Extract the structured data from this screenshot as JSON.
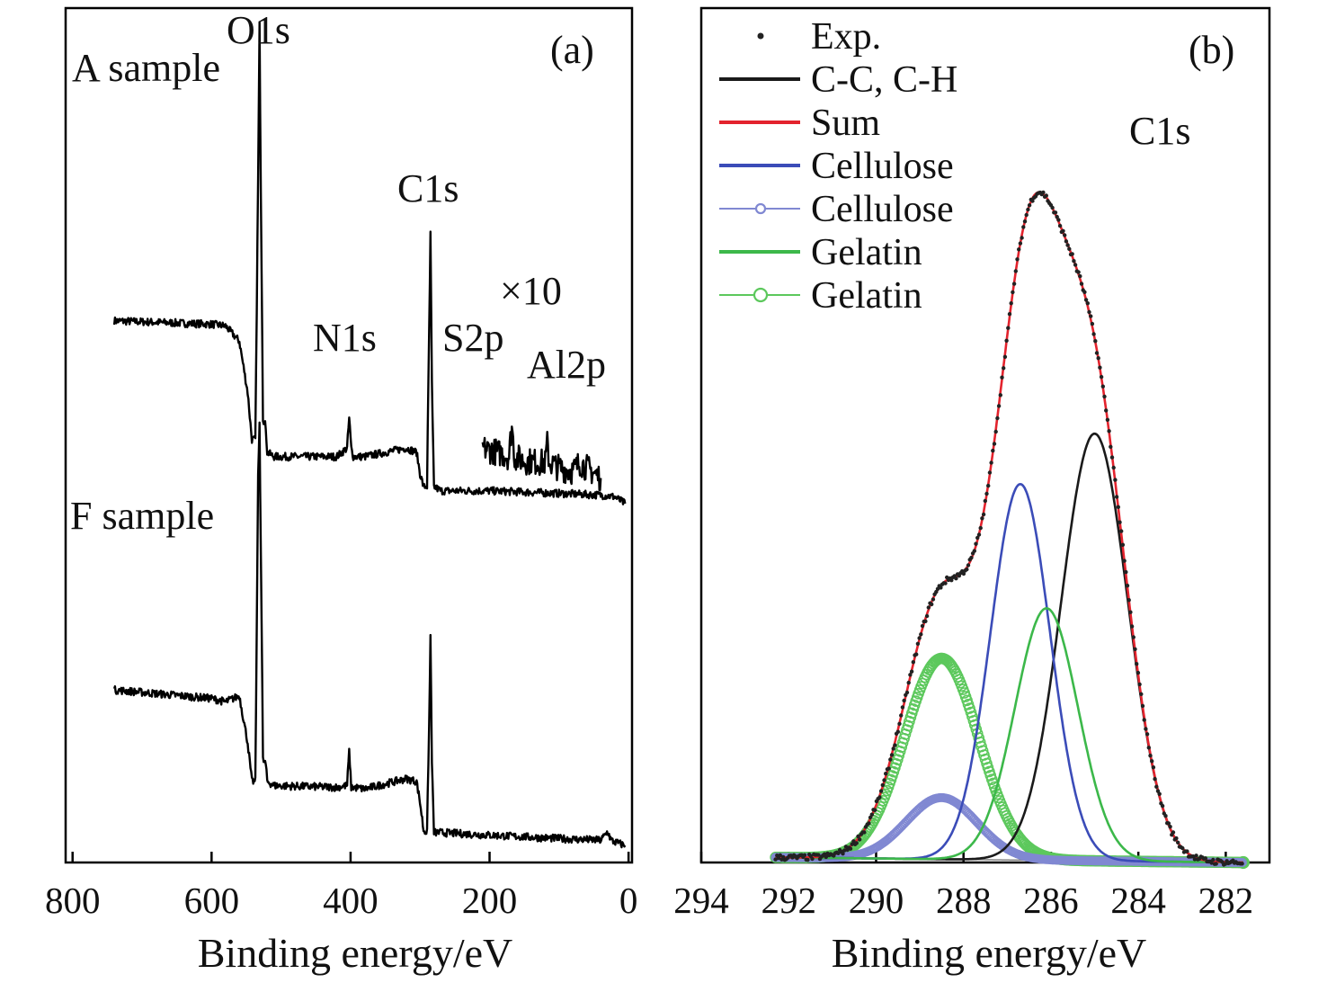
{
  "chart_data": [
    {
      "panel": "(a)",
      "type": "line",
      "xlabel": "Binding energy/eV",
      "xlim": [
        810,
        -5
      ],
      "x_reversed": true,
      "xticks": [
        800,
        600,
        400,
        200,
        0
      ],
      "y_ticks_shown": false,
      "ylim": [
        0,
        100
      ],
      "annotations": {
        "a_sample": "A sample",
        "f_sample": "F sample",
        "o1s": "O1s",
        "c1s": "C1s",
        "n1s": "N1s",
        "s2p": "S2p",
        "x10": "×10",
        "al2p": "Al2p"
      },
      "series": [
        {
          "name": "A sample",
          "color": "#000000",
          "x": [
            740,
            600,
            580,
            560,
            548,
            542,
            537,
            533,
            531,
            529,
            526,
            522,
            520,
            510,
            420,
            405,
            402,
            399,
            396,
            380,
            320,
            305,
            300,
            295,
            290,
            287,
            285,
            283,
            280,
            270,
            200,
            100,
            40,
            20,
            5
          ],
          "y": [
            63.4,
            63.0,
            62.8,
            61.0,
            55.0,
            49.5,
            49.5,
            80.0,
            98.0,
            78.0,
            52.0,
            51.0,
            48.0,
            47.5,
            47.5,
            48.5,
            52.0,
            48.5,
            47.5,
            47.5,
            48.5,
            48.0,
            45.5,
            44.0,
            44.0,
            62.0,
            73.5,
            56.0,
            44.0,
            43.5,
            43.5,
            43.2,
            43.0,
            42.8,
            42.0
          ]
        },
        {
          "name": "A sample ×10",
          "color": "#000000",
          "x": [
            210,
            180,
            172,
            168,
            164,
            150,
            120,
            117,
            114,
            100,
            80,
            70,
            40
          ],
          "y": [
            48.5,
            47.8,
            47.5,
            51.2,
            47.5,
            47.0,
            46.8,
            49.0,
            46.8,
            46.2,
            45.8,
            46.8,
            45.0
          ]
        },
        {
          "name": "F sample",
          "color": "#000000",
          "x": [
            740,
            600,
            580,
            560,
            548,
            542,
            537,
            533,
            531,
            529,
            526,
            522,
            520,
            510,
            420,
            405,
            402,
            399,
            396,
            380,
            320,
            305,
            300,
            295,
            290,
            287,
            285,
            283,
            280,
            270,
            200,
            100,
            40,
            30,
            25,
            20,
            5
          ],
          "y": [
            20.2,
            19.2,
            18.8,
            19.5,
            14.0,
            9.5,
            9.5,
            45.0,
            51.5,
            36.0,
            12.0,
            11.5,
            9.5,
            9.0,
            8.8,
            9.0,
            13.0,
            8.8,
            8.8,
            8.6,
            9.8,
            9.5,
            7.0,
            3.8,
            3.5,
            16.0,
            26.5,
            12.0,
            3.5,
            3.5,
            3.2,
            2.8,
            2.6,
            3.6,
            2.6,
            2.4,
            2.0
          ]
        }
      ]
    },
    {
      "panel": "(b)",
      "type": "line",
      "xlabel": "Binding energy/eV",
      "xlim": [
        294,
        281
      ],
      "x_reversed": true,
      "xticks": [
        294,
        292,
        290,
        288,
        286,
        284,
        282
      ],
      "y_ticks_shown": false,
      "ylim": [
        0,
        100
      ],
      "annotations": {
        "c1s": "C1s"
      },
      "legend_position": "top-left",
      "series": [
        {
          "name": "Exp.",
          "style": "dots",
          "color": "#222222",
          "component": "exp",
          "params": [
            292.3,
            281.6
          ]
        },
        {
          "name": "C-C, C-H",
          "style": "line",
          "color": "#1a1a1a",
          "component": "gauss",
          "params": {
            "center": 285.0,
            "height": 50.0,
            "fwhm": 1.8
          }
        },
        {
          "name": "Sum",
          "style": "line",
          "color": "#e3232d",
          "component": "sum",
          "params": [
            292.3,
            281.6
          ]
        },
        {
          "name": "Cellulose",
          "style": "line",
          "color": "#3b4cb8",
          "component": "gauss",
          "params": {
            "center": 286.7,
            "height": 44.0,
            "fwhm": 1.6
          }
        },
        {
          "name": "Cellulose",
          "style": "open-circles-small",
          "color": "#8088d2",
          "component": "gauss",
          "params": {
            "center": 288.5,
            "height": 7.2,
            "fwhm": 1.9
          }
        },
        {
          "name": "Gelatin",
          "style": "line",
          "color": "#3cb84a",
          "component": "gauss",
          "params": {
            "center": 286.1,
            "height": 29.5,
            "fwhm": 1.7
          }
        },
        {
          "name": "Gelatin",
          "style": "open-circles",
          "color": "#5cc85c",
          "component": "gauss",
          "params": {
            "center": 288.5,
            "height": 23.5,
            "fwhm": 2.0
          }
        },
        {
          "name": "background",
          "style": "thin-line",
          "color": "#888888",
          "component": "baseline",
          "params": [
            292.3,
            281.6,
            0.6,
            0.0
          ]
        }
      ]
    }
  ]
}
